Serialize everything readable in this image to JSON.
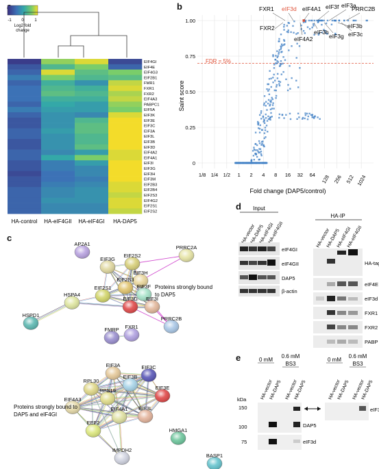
{
  "panel_labels": {
    "a": "a",
    "b": "b",
    "c": "c",
    "d": "d",
    "e": "e"
  },
  "panel_a": {
    "colorbar_ticks": [
      "-1",
      "0",
      "1"
    ],
    "colorbar_label_1": "Log2 fold",
    "colorbar_label_2": "change",
    "colorbar_colors": [
      "#3a2f7f",
      "#3c72b6",
      "#34a8a8",
      "#7acd6a",
      "#f3dc2a"
    ],
    "columns": [
      "HA-control",
      "HA-eIF4GII",
      "HA-eIF4GI",
      "HA-DAP5"
    ],
    "rows": [
      "EIF4GI",
      "EIF4E",
      "EIF4G3",
      "EIF2B1",
      "FMR1",
      "FXR1",
      "FXR2",
      "EIF4A3",
      "PABPC1",
      "EIF5A",
      "EIF3K",
      "EIF3E",
      "EIF3C",
      "EIF3A",
      "EIF3L",
      "EIF3B",
      "EIF3D",
      "EIF4A2",
      "EIF4A1",
      "EIF3I",
      "EIF3G",
      "EIF3H",
      "EIF3M",
      "EIF2B3",
      "EIF2B4",
      "EIF2S3",
      "EIF4G2",
      "EIF2S1",
      "EIF2S2"
    ],
    "values": [
      [
        -0.9,
        0.6,
        0.9,
        -0.8
      ],
      [
        -0.7,
        0.2,
        0.5,
        -0.6
      ],
      [
        -0.6,
        0.9,
        0.3,
        0.5
      ],
      [
        -0.4,
        0.5,
        0.2,
        0.3
      ],
      [
        -0.6,
        0.1,
        -0.2,
        0.8
      ],
      [
        -0.5,
        0.2,
        0.1,
        0.9
      ],
      [
        -0.5,
        0.3,
        0.2,
        0.7
      ],
      [
        -0.5,
        0.1,
        0.1,
        0.8
      ],
      [
        -0.6,
        0.0,
        -0.1,
        0.6
      ],
      [
        -0.4,
        -0.1,
        -0.1,
        0.5
      ],
      [
        -0.6,
        -0.2,
        -0.3,
        0.9
      ],
      [
        -0.7,
        -0.2,
        0.2,
        1.0
      ],
      [
        -0.7,
        -0.2,
        0.3,
        1.0
      ],
      [
        -0.6,
        -0.1,
        0.3,
        1.0
      ],
      [
        -0.6,
        -0.2,
        0.2,
        1.0
      ],
      [
        -0.7,
        -0.2,
        0.2,
        1.0
      ],
      [
        -0.7,
        -0.2,
        0.3,
        1.0
      ],
      [
        -0.6,
        -0.3,
        -0.1,
        0.9
      ],
      [
        -0.6,
        0.0,
        0.5,
        0.9
      ],
      [
        -0.7,
        -0.4,
        -0.1,
        1.0
      ],
      [
        -0.7,
        -0.4,
        -0.3,
        1.0
      ],
      [
        -0.8,
        -0.5,
        -0.3,
        1.0
      ],
      [
        -0.7,
        -0.5,
        -0.4,
        1.0
      ],
      [
        -0.7,
        -0.4,
        -0.3,
        0.9
      ],
      [
        -0.6,
        -0.3,
        -0.2,
        0.9
      ],
      [
        -0.6,
        -0.3,
        -0.2,
        0.8
      ],
      [
        -0.6,
        -0.2,
        -0.2,
        0.9
      ],
      [
        -0.6,
        -0.3,
        -0.3,
        0.9
      ],
      [
        -0.6,
        -0.3,
        -0.3,
        0.8
      ]
    ]
  },
  "panel_b": {
    "ylabel": "Saint score",
    "xlabel": "Fold change (DAP5/control)",
    "fdr_label": "FDR = 5%",
    "fdr_value": 0.7,
    "fdr_color": "#e0533a",
    "highlight_color": "#e0533a",
    "point_color": "#3f7fc4",
    "yticks": [
      "0",
      "0.25",
      "0.50",
      "0.75",
      "1.00"
    ],
    "ytick_values": [
      0,
      0.25,
      0.5,
      0.75,
      1.0
    ],
    "xticks": [
      "1/8",
      "1/4",
      "1/2",
      "1",
      "2",
      "4",
      "8",
      "16",
      "32",
      "64",
      "128",
      "256",
      "512",
      "1024"
    ],
    "xtick_log2": [
      -3,
      -2,
      -1,
      0,
      1,
      2,
      3,
      4,
      5,
      6,
      7,
      8,
      9,
      10
    ],
    "highlighted_proteins": [
      "FXR1",
      "eIF3d",
      "eIF4A1",
      "eIF3f",
      "eIF3a",
      "PRRC2B",
      "FXR2",
      "eIF4A2",
      "eIF3h",
      "eIF3g",
      "eIF3c",
      "eIF3b"
    ],
    "highlight_red": [
      "eIF3d"
    ]
  },
  "panel_c": {
    "group1_label_1": "Proteins strongly bound",
    "group1_label_2": "to DAP5",
    "group2_label_1": "Proteins strongly bound to",
    "group2_label_2": "DAP5 and eIF4GI",
    "nodes": {
      "AP2A1": "AP2A1",
      "EIF3G": "EIF3G",
      "EIF2S2": "EIF2S2",
      "PRRC2A": "PRRC2A",
      "EIF3H": "EIF3H",
      "EIF2S3": "EIF2S3",
      "HSPA4": "HSPA4",
      "EIF2S1": "EIF2S1",
      "EIF3F": "EIF3F",
      "EIF3D": "EIF3D",
      "EIF3I": "EIF3I",
      "HSPD1": "HSPD1",
      "PRRC2B": "PRRC2B",
      "FMRP": "FMRP",
      "FXR1": "FXR1",
      "EIF3A": "EIF3A",
      "EIF3C": "EIF3C",
      "RPL30": "RPL30",
      "EIF3B": "EIF3B",
      "RPS19": "RPS19",
      "EIF3E": "EIF3E",
      "EIF4A3": "EIF4A3",
      "EIF4A1": "EIF4A1",
      "EIF3L": "EIF3L",
      "EEF2": "EEF2",
      "HMGA1": "HMGA1",
      "IMPDH2": "IMPDH2",
      "BASP1": "BASP1"
    }
  },
  "panel_d": {
    "input_header": "Input",
    "ip_header": "HA-IP",
    "lanes": [
      "HA-vector",
      "HA-DAP5",
      "HA-eIF4GI",
      "HA-eIF4GII"
    ],
    "input_blots": [
      "eIF4GI",
      "eIF4GII",
      "DAP5",
      "β-actin"
    ],
    "ip_blots": [
      "HA-tag",
      "eIF4E",
      "eIF3d",
      "FXR1",
      "FXR2",
      "PABP"
    ]
  },
  "panel_e": {
    "conc_0": "0 mM",
    "conc_06": "0.6 mM",
    "crosslinker": "BS3",
    "lanes": [
      "HA-vector",
      "HA-DAP5",
      "HA-vector",
      "HA-DAP5"
    ],
    "kda_label": "kDa",
    "markers": [
      "150",
      "100",
      "75"
    ],
    "band_labels_left": [
      "DAP5",
      "eIF3d"
    ],
    "band_label_right": "eIF3d"
  }
}
